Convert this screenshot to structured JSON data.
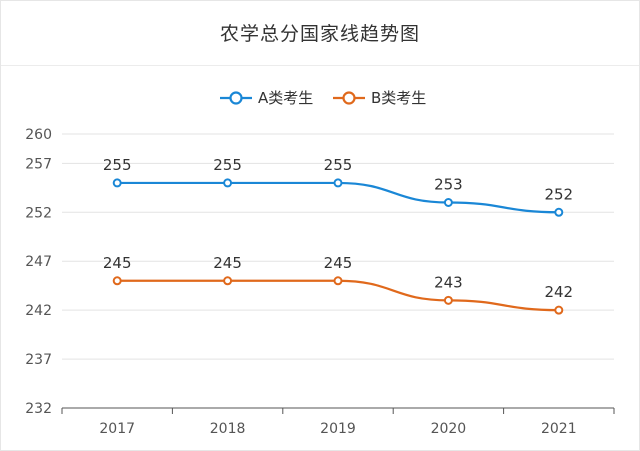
{
  "chart_data": {
    "type": "line",
    "title": "农学总分国家线趋势图",
    "categories": [
      "2017",
      "2018",
      "2019",
      "2020",
      "2021"
    ],
    "series": [
      {
        "name": "A类考生",
        "values": [
          255,
          255,
          255,
          253,
          252
        ],
        "color": "#1a87d6"
      },
      {
        "name": "B类考生",
        "values": [
          245,
          245,
          245,
          243,
          242
        ],
        "color": "#e0691c"
      }
    ],
    "yticks": [
      232,
      237,
      242,
      247,
      252,
      257,
      260
    ],
    "ylim": [
      232,
      260
    ],
    "grid": true,
    "legend_position": "top-center"
  }
}
